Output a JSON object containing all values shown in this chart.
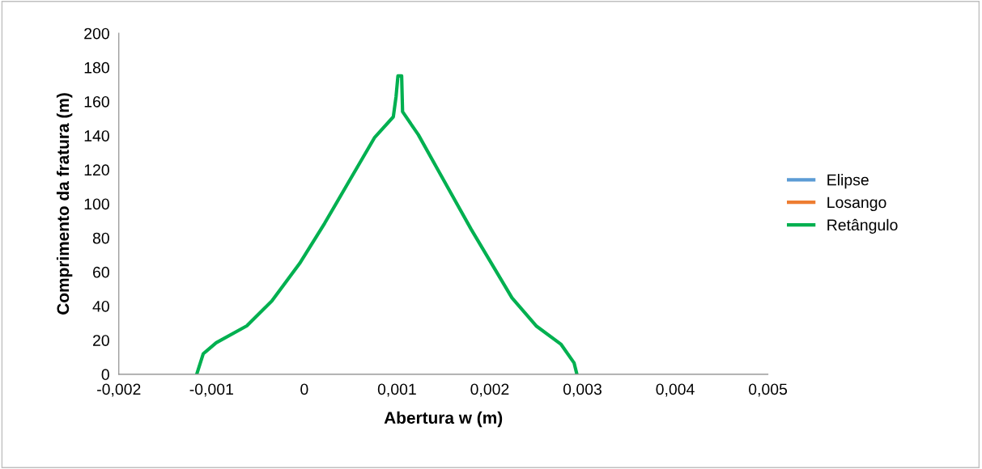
{
  "chart_data": {
    "type": "line",
    "xlabel": "Abertura w (m)",
    "ylabel": "Comprimento da fratura (m)",
    "x": [
      -0.00116,
      -0.00109,
      -0.00095,
      -0.00062,
      -0.00035,
      -5e-05,
      0.00022,
      0.00046,
      0.00076,
      0.00096,
      0.00099,
      0.00101,
      0.00105,
      0.00106,
      0.00123,
      0.00143,
      0.0018,
      0.00224,
      0.0025,
      0.00277,
      0.00291,
      0.00294
    ],
    "series": [
      {
        "name": "Elipse",
        "color": "#5b9bd5",
        "values": [
          null,
          null,
          null,
          null,
          null,
          null,
          null,
          null,
          null,
          null,
          null,
          null,
          null,
          null,
          null,
          null,
          null,
          null,
          null,
          null,
          null,
          null
        ]
      },
      {
        "name": "Losango",
        "color": "#ed7d31",
        "values": [
          null,
          null,
          null,
          null,
          null,
          null,
          null,
          null,
          null,
          null,
          null,
          null,
          null,
          null,
          null,
          null,
          null,
          null,
          null,
          null,
          null,
          null
        ]
      },
      {
        "name": "Retângulo",
        "color": "#00b050",
        "values": [
          0,
          12,
          18.5,
          28.4,
          43,
          65,
          88.6,
          111,
          139,
          151,
          163,
          175,
          175,
          154,
          140.5,
          121,
          85,
          44.8,
          28.4,
          17.5,
          6.6,
          0
        ]
      }
    ],
    "xlim": [
      -0.002,
      0.005
    ],
    "xticks": [
      {
        "value": -0.002,
        "label": "-0,002"
      },
      {
        "value": -0.001,
        "label": "-0,001"
      },
      0,
      {
        "value": 0.001,
        "label": "0,001"
      },
      {
        "value": 0.002,
        "label": "0,002"
      },
      {
        "value": 0.003,
        "label": "0,003"
      },
      {
        "value": 0.004,
        "label": "0,004"
      },
      {
        "value": 0.005,
        "label": "0,005"
      }
    ],
    "ylim": [
      0,
      200
    ],
    "yticks": [
      0,
      20,
      40,
      60,
      80,
      100,
      120,
      140,
      160,
      180,
      200
    ],
    "grid": false,
    "legend": "right",
    "marker": "none",
    "line_style": "solid"
  }
}
